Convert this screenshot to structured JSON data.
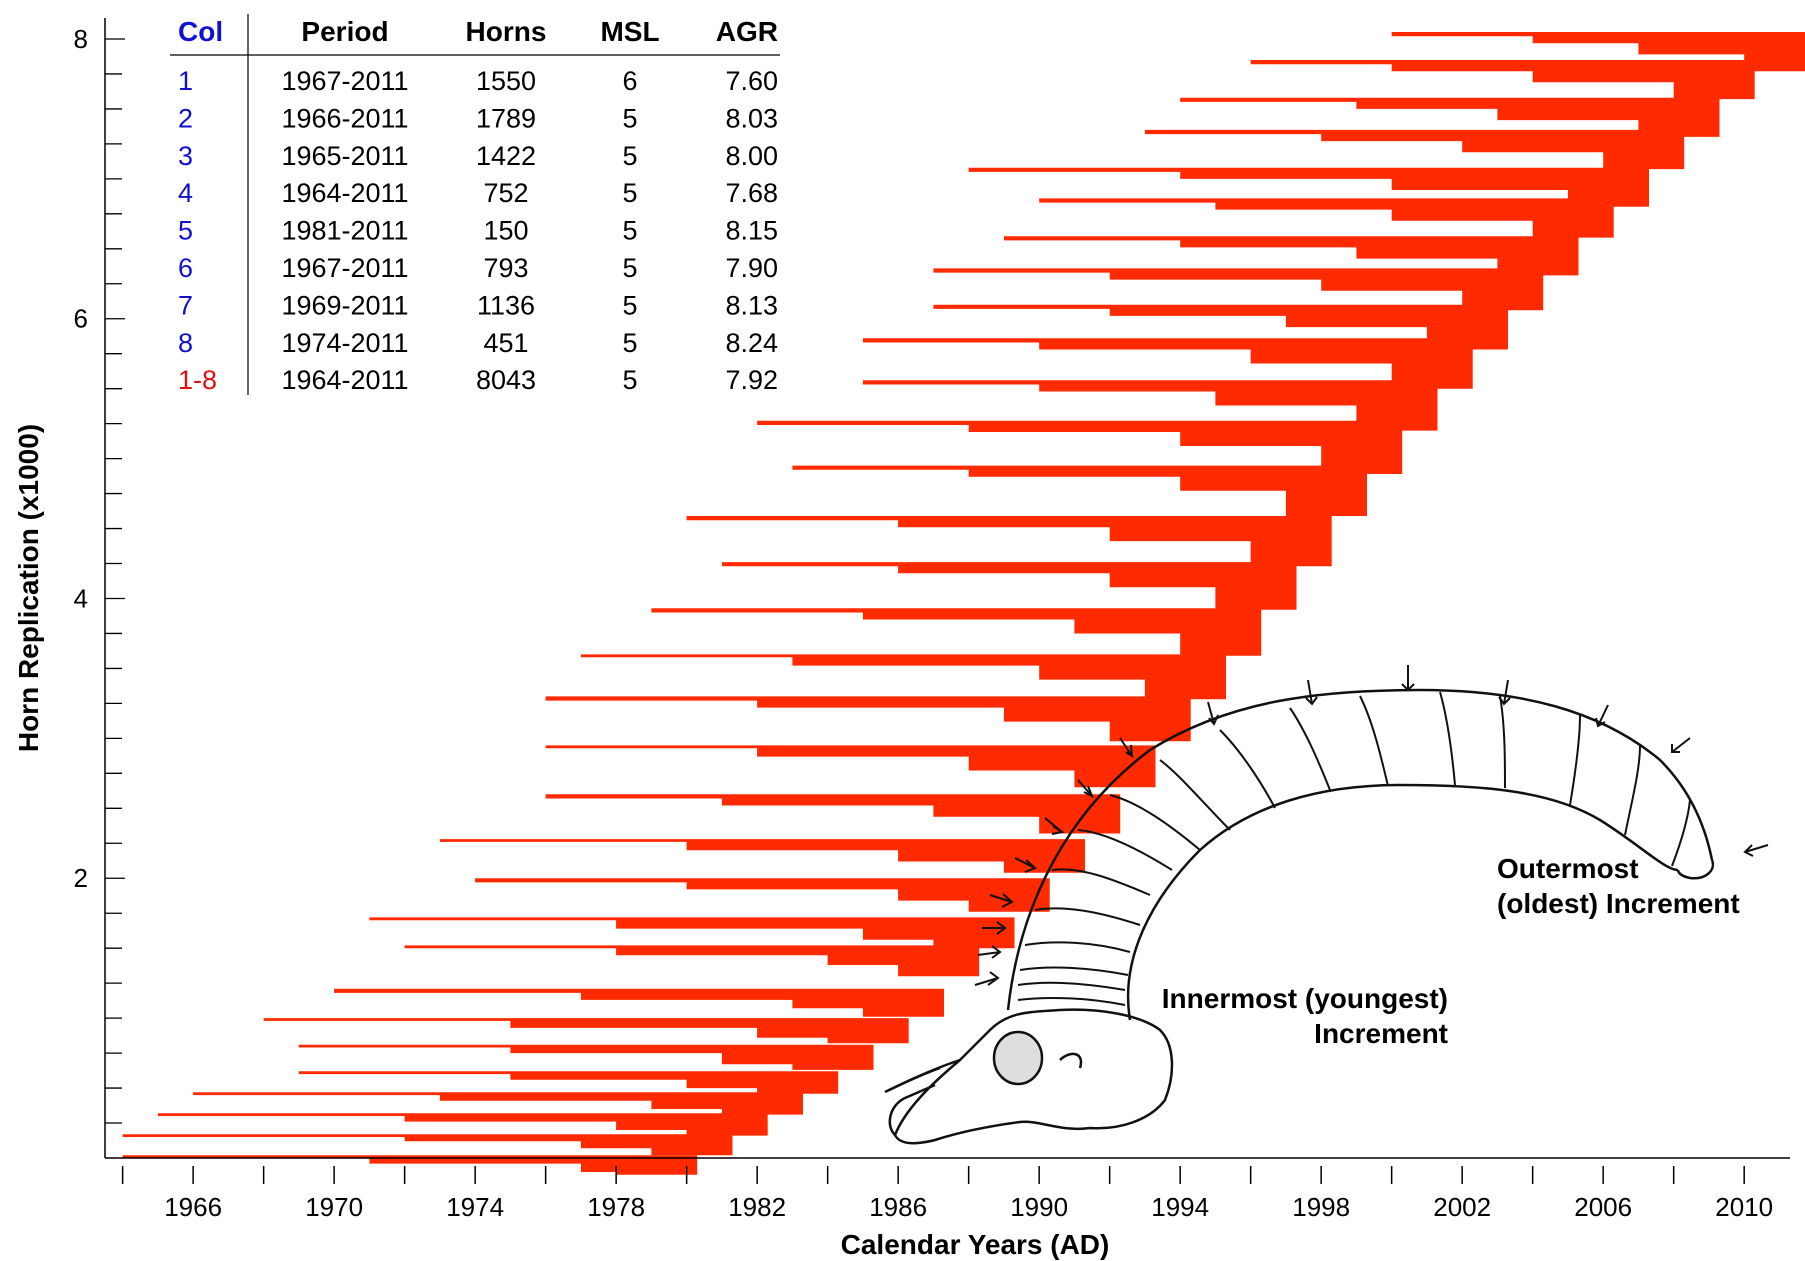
{
  "chart_data": {
    "type": "bar",
    "xlabel": "Calendar Years (AD)",
    "ylabel": "Horn Replication (x1000)",
    "xlim": [
      1963.5,
      2011.3
    ],
    "ylim": [
      0,
      8.15
    ],
    "x_ticks": [
      1966,
      1970,
      1974,
      1978,
      1982,
      1986,
      1990,
      1994,
      1998,
      2002,
      2006,
      2010
    ],
    "y_ticks": [
      2,
      4,
      6,
      8
    ],
    "series_color": "#ff2a00",
    "bars": [
      {
        "y": 0.02,
        "start": 1964,
        "steps": [
          [
            1964,
            0.02
          ],
          [
            1971,
            0.06
          ],
          [
            1977,
            0.12
          ],
          [
            1978,
            0.14
          ]
        ]
      },
      {
        "y": 0.17,
        "start": 1964,
        "steps": [
          [
            1964,
            0.02
          ],
          [
            1972,
            0.05
          ],
          [
            1977,
            0.1
          ],
          [
            1979,
            0.15
          ]
        ]
      },
      {
        "y": 0.32,
        "start": 1965,
        "steps": [
          [
            1965,
            0.02
          ],
          [
            1972,
            0.06
          ],
          [
            1978,
            0.12
          ],
          [
            1980,
            0.16
          ]
        ]
      },
      {
        "y": 0.47,
        "start": 1966,
        "steps": [
          [
            1966,
            0.02
          ],
          [
            1973,
            0.06
          ],
          [
            1979,
            0.12
          ],
          [
            1981,
            0.16
          ]
        ]
      },
      {
        "y": 0.62,
        "start": 1969,
        "steps": [
          [
            1969,
            0.02
          ],
          [
            1975,
            0.06
          ],
          [
            1980,
            0.12
          ],
          [
            1982,
            0.16
          ]
        ]
      },
      {
        "y": 0.81,
        "start": 1969,
        "steps": [
          [
            1969,
            0.02
          ],
          [
            1975,
            0.06
          ],
          [
            1981,
            0.14
          ],
          [
            1983,
            0.18
          ]
        ]
      },
      {
        "y": 1.0,
        "start": 1968,
        "steps": [
          [
            1968,
            0.02
          ],
          [
            1975,
            0.07
          ],
          [
            1982,
            0.14
          ],
          [
            1984,
            0.18
          ]
        ]
      },
      {
        "y": 1.21,
        "start": 1970,
        "steps": [
          [
            1970,
            0.03
          ],
          [
            1977,
            0.08
          ],
          [
            1983,
            0.14
          ],
          [
            1985,
            0.2
          ]
        ]
      },
      {
        "y": 1.52,
        "start": 1972,
        "steps": [
          [
            1972,
            0.02
          ],
          [
            1978,
            0.07
          ],
          [
            1984,
            0.14
          ],
          [
            1986,
            0.22
          ]
        ]
      },
      {
        "y": 1.72,
        "start": 1971,
        "steps": [
          [
            1971,
            0.02
          ],
          [
            1978,
            0.08
          ],
          [
            1985,
            0.16
          ],
          [
            1987,
            0.22
          ]
        ]
      },
      {
        "y": 2.0,
        "start": 1974,
        "steps": [
          [
            1974,
            0.03
          ],
          [
            1980,
            0.08
          ],
          [
            1986,
            0.16
          ],
          [
            1988,
            0.24
          ]
        ]
      },
      {
        "y": 2.28,
        "start": 1973,
        "steps": [
          [
            1973,
            0.02
          ],
          [
            1980,
            0.08
          ],
          [
            1986,
            0.16
          ],
          [
            1989,
            0.24
          ]
        ]
      },
      {
        "y": 2.6,
        "start": 1976,
        "steps": [
          [
            1976,
            0.03
          ],
          [
            1981,
            0.08
          ],
          [
            1987,
            0.16
          ],
          [
            1990,
            0.28
          ]
        ]
      },
      {
        "y": 2.95,
        "start": 1976,
        "steps": [
          [
            1976,
            0.02
          ],
          [
            1982,
            0.08
          ],
          [
            1988,
            0.18
          ],
          [
            1991,
            0.3
          ]
        ]
      },
      {
        "y": 3.3,
        "start": 1976,
        "steps": [
          [
            1976,
            0.03
          ],
          [
            1982,
            0.08
          ],
          [
            1989,
            0.18
          ],
          [
            1992,
            0.32
          ]
        ]
      },
      {
        "y": 3.6,
        "start": 1977,
        "steps": [
          [
            1977,
            0.02
          ],
          [
            1983,
            0.08
          ],
          [
            1990,
            0.18
          ],
          [
            1993,
            0.32
          ]
        ]
      },
      {
        "y": 3.93,
        "start": 1979,
        "steps": [
          [
            1979,
            0.03
          ],
          [
            1985,
            0.08
          ],
          [
            1991,
            0.18
          ],
          [
            1994,
            0.34
          ]
        ]
      },
      {
        "y": 4.26,
        "start": 1981,
        "steps": [
          [
            1981,
            0.03
          ],
          [
            1986,
            0.08
          ],
          [
            1992,
            0.18
          ],
          [
            1995,
            0.34
          ]
        ]
      },
      {
        "y": 4.59,
        "start": 1980,
        "steps": [
          [
            1980,
            0.03
          ],
          [
            1986,
            0.08
          ],
          [
            1992,
            0.18
          ],
          [
            1996,
            0.36
          ]
        ]
      },
      {
        "y": 4.95,
        "start": 1983,
        "steps": [
          [
            1983,
            0.03
          ],
          [
            1988,
            0.08
          ],
          [
            1994,
            0.18
          ],
          [
            1997,
            0.36
          ]
        ]
      },
      {
        "y": 5.27,
        "start": 1982,
        "steps": [
          [
            1982,
            0.03
          ],
          [
            1988,
            0.08
          ],
          [
            1994,
            0.18
          ],
          [
            1998,
            0.38
          ]
        ]
      },
      {
        "y": 5.56,
        "start": 1985,
        "steps": [
          [
            1985,
            0.03
          ],
          [
            1990,
            0.08
          ],
          [
            1995,
            0.18
          ],
          [
            1999,
            0.36
          ]
        ]
      },
      {
        "y": 5.86,
        "start": 1985,
        "steps": [
          [
            1985,
            0.03
          ],
          [
            1990,
            0.08
          ],
          [
            1996,
            0.18
          ],
          [
            2000,
            0.36
          ]
        ]
      },
      {
        "y": 6.1,
        "start": 1987,
        "steps": [
          [
            1987,
            0.03
          ],
          [
            1992,
            0.08
          ],
          [
            1997,
            0.16
          ],
          [
            2001,
            0.32
          ]
        ]
      },
      {
        "y": 6.36,
        "start": 1987,
        "steps": [
          [
            1987,
            0.03
          ],
          [
            1992,
            0.08
          ],
          [
            1998,
            0.16
          ],
          [
            2002,
            0.3
          ]
        ]
      },
      {
        "y": 6.59,
        "start": 1989,
        "steps": [
          [
            1989,
            0.03
          ],
          [
            1994,
            0.08
          ],
          [
            1999,
            0.16
          ],
          [
            2003,
            0.28
          ]
        ]
      },
      {
        "y": 6.86,
        "start": 1990,
        "steps": [
          [
            1990,
            0.03
          ],
          [
            1995,
            0.08
          ],
          [
            2000,
            0.16
          ],
          [
            2004,
            0.28
          ]
        ]
      },
      {
        "y": 7.08,
        "start": 1988,
        "steps": [
          [
            1988,
            0.03
          ],
          [
            1994,
            0.08
          ],
          [
            2000,
            0.16
          ],
          [
            2005,
            0.28
          ]
        ]
      },
      {
        "y": 7.35,
        "start": 1993,
        "steps": [
          [
            1993,
            0.03
          ],
          [
            1998,
            0.08
          ],
          [
            2002,
            0.16
          ],
          [
            2006,
            0.28
          ]
        ]
      },
      {
        "y": 7.58,
        "start": 1994,
        "steps": [
          [
            1994,
            0.03
          ],
          [
            1999,
            0.08
          ],
          [
            2003,
            0.16
          ],
          [
            2007,
            0.28
          ]
        ]
      },
      {
        "y": 7.85,
        "start": 1996,
        "steps": [
          [
            1996,
            0.03
          ],
          [
            2000,
            0.08
          ],
          [
            2004,
            0.16
          ],
          [
            2008,
            0.28
          ]
        ]
      },
      {
        "y": 8.05,
        "start": 2000,
        "steps": [
          [
            2000,
            0.03
          ],
          [
            2004,
            0.08
          ],
          [
            2007,
            0.16
          ],
          [
            2010,
            0.28
          ]
        ]
      }
    ],
    "table": {
      "headers": [
        "Col",
        "Period",
        "Horns",
        "MSL",
        "AGR"
      ],
      "rows": [
        [
          "1",
          "1967-2011",
          "1550",
          "6",
          "7.60"
        ],
        [
          "2",
          "1966-2011",
          "1789",
          "5",
          "8.03"
        ],
        [
          "3",
          "1965-2011",
          "1422",
          "5",
          "8.00"
        ],
        [
          "4",
          "1964-2011",
          "752",
          "5",
          "7.68"
        ],
        [
          "5",
          "1981-2011",
          "150",
          "5",
          "8.15"
        ],
        [
          "6",
          "1967-2011",
          "793",
          "5",
          "7.90"
        ],
        [
          "7",
          "1969-2011",
          "1136",
          "5",
          "8.13"
        ],
        [
          "8",
          "1974-2011",
          "451",
          "5",
          "8.24"
        ],
        [
          "1-8",
          "1964-2011",
          "8043",
          "5",
          "7.92"
        ]
      ],
      "col_color": "#1010d0",
      "total_color": "#e01010"
    },
    "annotations": [
      {
        "lines": [
          "Outermost",
          "(oldest) Increment"
        ],
        "align": "left"
      },
      {
        "lines": [
          "Innermost (youngest)",
          "Increment"
        ],
        "align": "right"
      }
    ]
  }
}
